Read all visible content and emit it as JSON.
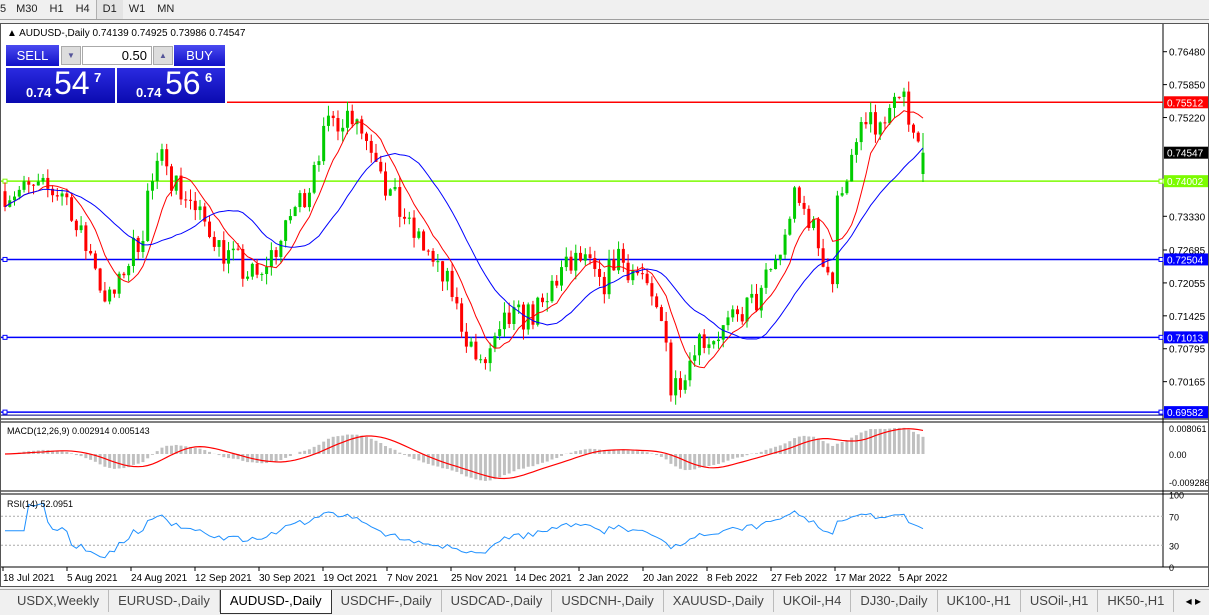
{
  "toolbar": {
    "timeframes": [
      "5",
      "M30",
      "H1",
      "H4",
      "D1",
      "W1",
      "MN"
    ],
    "active": "D1"
  },
  "header": {
    "symbol": "AUDUSD-,Daily",
    "ohlc": "0.74139 0.74925 0.73986 0.74547"
  },
  "trade": {
    "sell_label": "SELL",
    "buy_label": "BUY",
    "lot": "0.50",
    "sell_prefix": "0.74",
    "sell_big": "54",
    "sell_sup": "7",
    "buy_prefix": "0.74",
    "buy_big": "56",
    "buy_sup": "6"
  },
  "macd": {
    "label": "MACD(12,26,9) 0.002914 0.005143",
    "ticks": [
      "0.008061",
      "0.00",
      "-0.009286"
    ]
  },
  "rsi": {
    "label": "RSI(14) 52.0951",
    "ticks": [
      "100",
      "70",
      "30",
      "0"
    ]
  },
  "tabs": [
    "USDX,Weekly",
    "EURUSD-,Daily",
    "AUDUSD-,Daily",
    "USDCHF-,Daily",
    "USDCAD-,Daily",
    "USDCNH-,Daily",
    "XAUUSD-,Daily",
    "UKOil-,H4",
    "DJ30-,Daily",
    "UK100-,H1",
    "USOil-,H1",
    "HK50-,H1"
  ],
  "active_tab": "AUDUSD-,Daily",
  "chart_data": {
    "type": "candlestick",
    "symbol": "AUDUSD-",
    "timeframe": "Daily",
    "price_ticks": [
      "0.76480",
      "0.75850",
      "0.75220",
      "0.73330",
      "0.72685",
      "0.72055",
      "0.71425",
      "0.70795",
      "0.70165"
    ],
    "current_price": "0.74547",
    "last_bar": {
      "open": 0.74139,
      "high": 0.74925,
      "low": 0.73986,
      "close": 0.74547
    },
    "date_labels": [
      "18 Jul 2021",
      "5 Aug 2021",
      "24 Aug 2021",
      "12 Sep 2021",
      "30 Sep 2021",
      "19 Oct 2021",
      "7 Nov 2021",
      "25 Nov 2021",
      "14 Dec 2021",
      "2 Jan 2022",
      "20 Jan 2022",
      "8 Feb 2022",
      "27 Feb 2022",
      "17 Mar 2022",
      "5 Apr 2022"
    ],
    "horizontal_lines": [
      {
        "price": "0.75512",
        "color": "#ff0000"
      },
      {
        "price": "0.74002",
        "color": "#7cfc00"
      },
      {
        "price": "0.72504",
        "color": "#0000ff"
      },
      {
        "price": "0.71013",
        "color": "#0000ff"
      },
      {
        "price": "0.69582",
        "color": "#0000ff"
      }
    ],
    "colors": {
      "bull": "#00cc00",
      "bear": "#ff0000",
      "ma_fast": "#ff0000",
      "ma_slow": "#0000ff",
      "macd_hist": "#c0c0c0",
      "macd_signal": "#ff0000",
      "rsi": "#1e90ff"
    },
    "close_path": [
      [
        "2021-07-19",
        0.7381
      ],
      [
        "2021-08-04",
        0.7381
      ],
      [
        "2021-08-18",
        0.7171
      ],
      [
        "2021-08-24",
        0.7248
      ],
      [
        "2021-09-03",
        0.7458
      ],
      [
        "2021-09-08",
        0.7381
      ],
      [
        "2021-09-23",
        0.7248
      ],
      [
        "2021-10-01",
        0.7209
      ],
      [
        "2021-10-07",
        0.7286
      ],
      [
        "2021-10-13",
        0.7362
      ],
      [
        "2021-10-22",
        0.7515
      ],
      [
        "2021-10-29",
        0.7534
      ],
      [
        "2021-11-04",
        0.7458
      ],
      [
        "2021-11-11",
        0.7343
      ],
      [
        "2021-11-21",
        0.7248
      ],
      [
        "2021-11-29",
        0.7152
      ],
      [
        "2021-12-05",
        0.7018
      ],
      [
        "2021-12-08",
        0.7075
      ],
      [
        "2021-12-14",
        0.7133
      ],
      [
        "2021-12-23",
        0.7152
      ],
      [
        "2021-12-29",
        0.7228
      ],
      [
        "2022-01-04",
        0.7248
      ],
      [
        "2022-01-10",
        0.719
      ],
      [
        "2022-01-14",
        0.7267
      ],
      [
        "2022-01-22",
        0.7209
      ],
      [
        "2022-01-28",
        0.7114
      ],
      [
        "2022-01-31",
        0.6999
      ],
      [
        "2022-02-06",
        0.7094
      ],
      [
        "2022-02-15",
        0.7114
      ],
      [
        "2022-02-27",
        0.719
      ],
      [
        "2022-03-08",
        0.7362
      ],
      [
        "2022-03-14",
        0.7305
      ],
      [
        "2022-03-18",
        0.7209
      ],
      [
        "2022-03-22",
        0.74
      ],
      [
        "2022-03-28",
        0.7506
      ],
      [
        "2022-04-03",
        0.7496
      ],
      [
        "2022-04-09",
        0.7573
      ],
      [
        "2022-04-11",
        0.7496
      ],
      [
        "2022-04-14",
        0.74547
      ]
    ]
  }
}
